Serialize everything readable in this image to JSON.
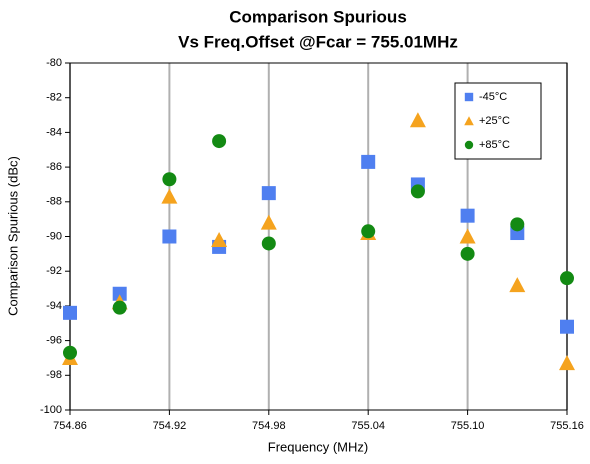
{
  "chart_data": {
    "type": "scatter",
    "title": [
      "Comparison Spurious",
      "Vs Freq.Offset @Fcar = 755.01MHz"
    ],
    "x_label": "Frequency (MHz)",
    "y_label": "Comparison Spurious  (dBc)",
    "x": [
      754.86,
      754.89,
      754.92,
      754.95,
      754.98,
      755.04,
      755.07,
      755.1,
      755.13,
      755.16
    ],
    "series": [
      {
        "name": "-45°C",
        "color": "#4f7ff0",
        "marker": "square",
        "values": [
          -94.4,
          -93.3,
          -90.0,
          -90.6,
          -87.5,
          -85.7,
          -87.0,
          -88.8,
          -89.8,
          -95.2
        ]
      },
      {
        "name": "+25°C",
        "color": "#f5a31e",
        "marker": "triangle",
        "values": [
          -97.0,
          -93.8,
          -87.7,
          -90.2,
          -89.2,
          -89.8,
          -83.3,
          -90.0,
          -92.8,
          -97.3
        ]
      },
      {
        "name": "+85°C",
        "color": "#138a13",
        "marker": "circle",
        "values": [
          -96.7,
          -94.1,
          -86.7,
          -84.5,
          -90.4,
          -89.7,
          -87.4,
          -91.0,
          -89.3,
          -92.4
        ]
      }
    ],
    "xlim": [
      754.86,
      755.16
    ],
    "xticks": [
      754.86,
      754.92,
      754.98,
      755.04,
      {
        "value": 755.1,
        "label": "755.10"
      },
      755.16
    ],
    "ylim": [
      -100,
      -80
    ],
    "yticks": [
      -100,
      -98,
      -96,
      -94,
      -92,
      -90,
      -88,
      -86,
      -84,
      -82,
      -80
    ],
    "grid": "x",
    "legend": "top-right"
  }
}
